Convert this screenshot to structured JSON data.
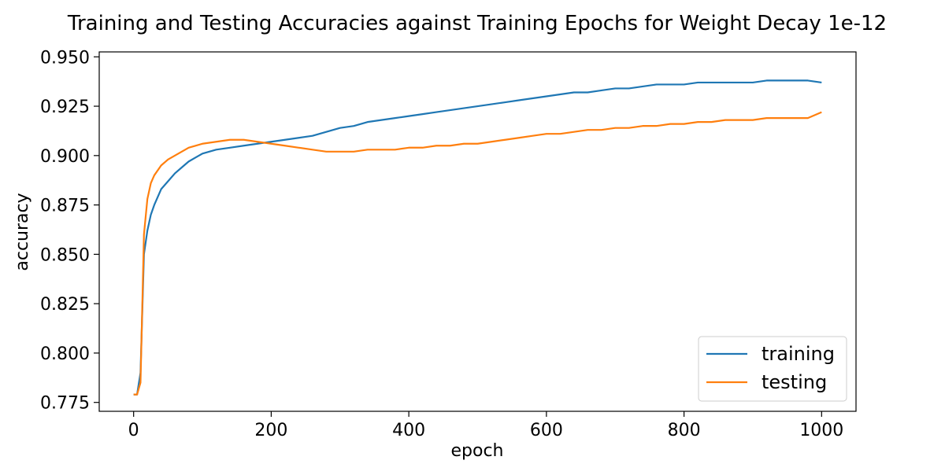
{
  "chart_data": {
    "type": "line",
    "title": "Training and Testing Accuracies against Training Epochs for Weight Decay 1e-12",
    "xlabel": "epoch",
    "ylabel": "accuracy",
    "xlim": [
      -50,
      1050
    ],
    "ylim": [
      0.7705,
      0.9525
    ],
    "xticks": [
      0,
      200,
      400,
      600,
      800,
      1000
    ],
    "xtick_labels": [
      "0",
      "200",
      "400",
      "600",
      "800",
      "1000"
    ],
    "yticks": [
      0.775,
      0.8,
      0.825,
      0.85,
      0.875,
      0.9,
      0.925,
      0.95
    ],
    "ytick_labels": [
      "0.775",
      "0.800",
      "0.825",
      "0.850",
      "0.875",
      "0.900",
      "0.925",
      "0.950"
    ],
    "grid": false,
    "legend_position": "bottom-right",
    "series": [
      {
        "name": "training",
        "color": "#1f77b4",
        "x": [
          0,
          5,
          10,
          15,
          20,
          25,
          30,
          40,
          50,
          60,
          70,
          80,
          90,
          100,
          120,
          140,
          160,
          180,
          200,
          220,
          240,
          260,
          280,
          300,
          320,
          340,
          360,
          380,
          400,
          420,
          440,
          460,
          480,
          500,
          520,
          540,
          560,
          580,
          600,
          620,
          640,
          660,
          680,
          700,
          720,
          740,
          760,
          780,
          800,
          820,
          840,
          860,
          880,
          900,
          920,
          940,
          960,
          980,
          1000
        ],
        "y": [
          0.779,
          0.779,
          0.79,
          0.85,
          0.862,
          0.87,
          0.875,
          0.883,
          0.887,
          0.891,
          0.894,
          0.897,
          0.899,
          0.901,
          0.903,
          0.904,
          0.905,
          0.906,
          0.907,
          0.908,
          0.909,
          0.91,
          0.912,
          0.914,
          0.915,
          0.917,
          0.918,
          0.919,
          0.92,
          0.921,
          0.922,
          0.923,
          0.924,
          0.925,
          0.926,
          0.927,
          0.928,
          0.929,
          0.93,
          0.931,
          0.932,
          0.932,
          0.933,
          0.934,
          0.934,
          0.935,
          0.936,
          0.936,
          0.936,
          0.937,
          0.937,
          0.937,
          0.937,
          0.937,
          0.938,
          0.938,
          0.938,
          0.938,
          0.937
        ]
      },
      {
        "name": "testing",
        "color": "#ff7f0e",
        "x": [
          0,
          5,
          10,
          15,
          20,
          25,
          30,
          40,
          50,
          60,
          70,
          80,
          90,
          100,
          120,
          140,
          160,
          180,
          200,
          220,
          240,
          260,
          280,
          300,
          320,
          340,
          360,
          380,
          400,
          420,
          440,
          460,
          480,
          500,
          520,
          540,
          560,
          580,
          600,
          620,
          640,
          660,
          680,
          700,
          720,
          740,
          760,
          780,
          800,
          820,
          840,
          860,
          880,
          900,
          920,
          940,
          960,
          980,
          1000
        ],
        "y": [
          0.779,
          0.779,
          0.785,
          0.86,
          0.878,
          0.886,
          0.89,
          0.895,
          0.898,
          0.9,
          0.902,
          0.904,
          0.905,
          0.906,
          0.907,
          0.908,
          0.908,
          0.907,
          0.906,
          0.905,
          0.904,
          0.903,
          0.902,
          0.902,
          0.902,
          0.903,
          0.903,
          0.903,
          0.904,
          0.904,
          0.905,
          0.905,
          0.906,
          0.906,
          0.907,
          0.908,
          0.909,
          0.91,
          0.911,
          0.911,
          0.912,
          0.913,
          0.913,
          0.914,
          0.914,
          0.915,
          0.915,
          0.916,
          0.916,
          0.917,
          0.917,
          0.918,
          0.918,
          0.918,
          0.919,
          0.919,
          0.919,
          0.919,
          0.922
        ]
      }
    ]
  }
}
